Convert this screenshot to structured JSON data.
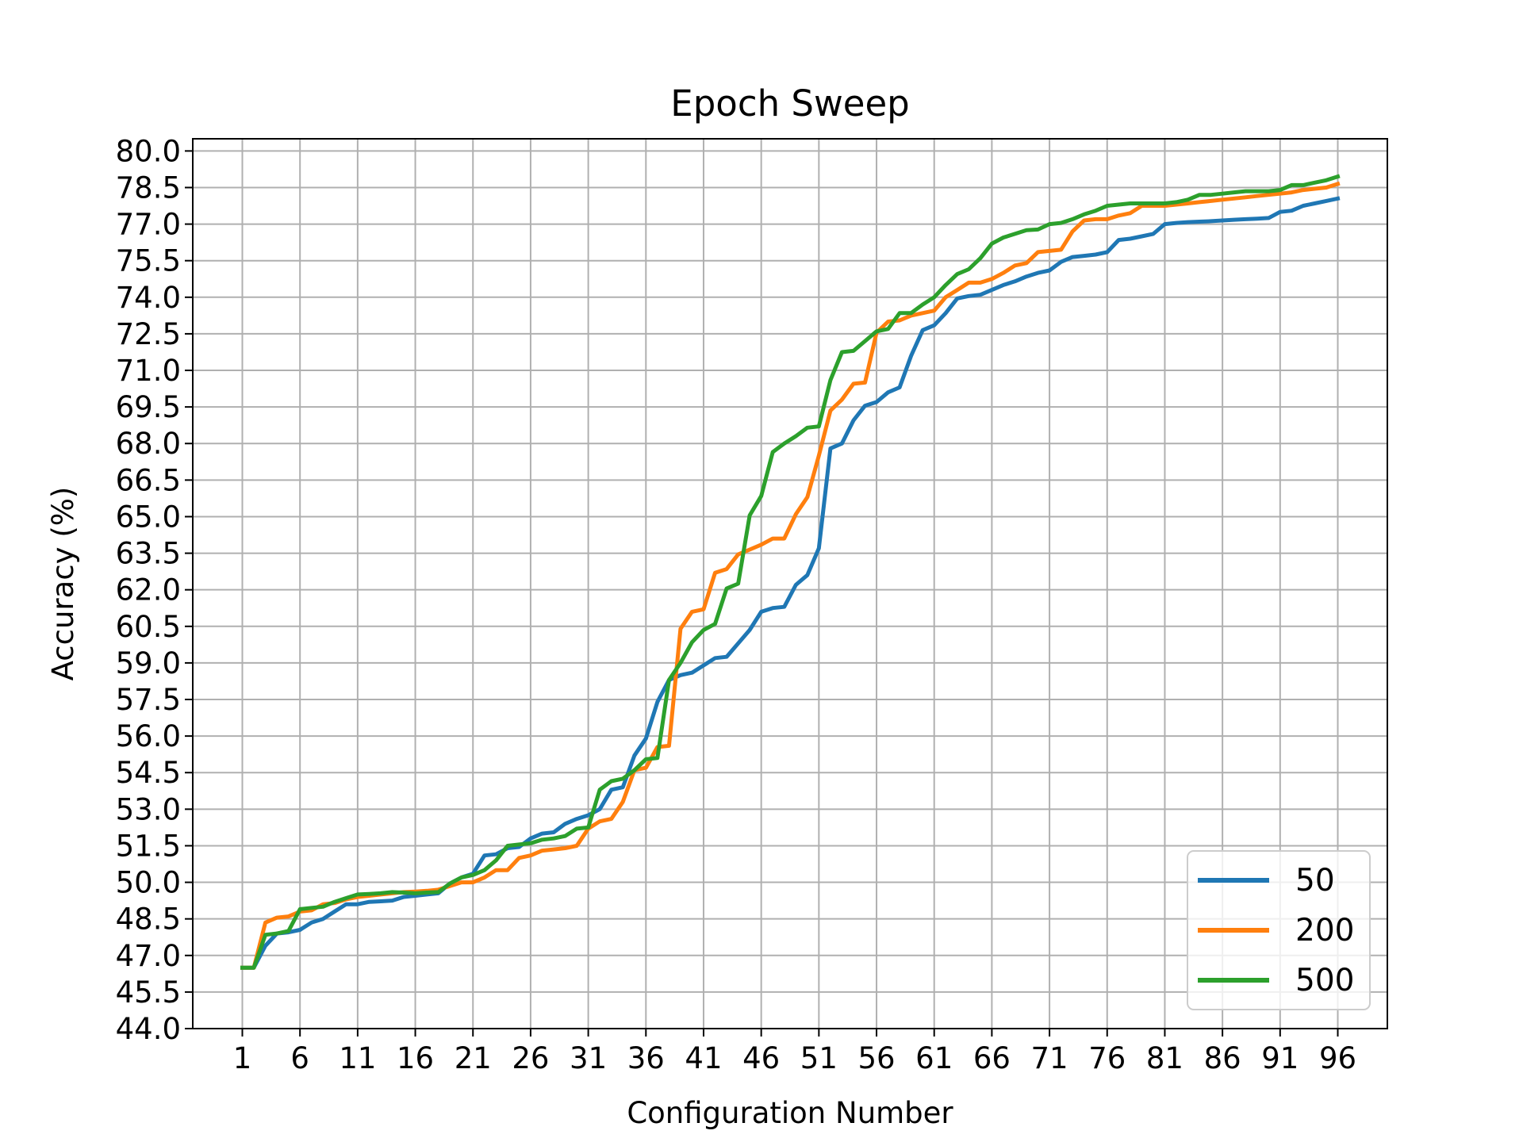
{
  "chart_data": {
    "type": "line",
    "title": "Epoch Sweep",
    "xlabel": "Configuration Number",
    "ylabel": "Accuracy (%)",
    "xlim": [
      -3.3,
      100.3
    ],
    "ylim": [
      44.0,
      80.5
    ],
    "xticks": [
      1,
      6,
      11,
      16,
      21,
      26,
      31,
      36,
      41,
      46,
      51,
      56,
      61,
      66,
      71,
      76,
      81,
      86,
      91,
      96
    ],
    "yticks": [
      "44.0",
      "45.5",
      "47.0",
      "48.5",
      "50.0",
      "51.5",
      "53.0",
      "54.5",
      "56.0",
      "57.5",
      "59.0",
      "60.5",
      "62.0",
      "63.5",
      "65.0",
      "66.5",
      "68.0",
      "69.5",
      "71.0",
      "72.5",
      "74.0",
      "75.5",
      "77.0",
      "78.5",
      "80.0"
    ],
    "grid": true,
    "legend_position": "lower-right",
    "colors": {
      "50": "#1f77b4",
      "200": "#ff7f0e",
      "500": "#2ca02c"
    },
    "x": [
      1,
      2,
      3,
      4,
      5,
      6,
      7,
      8,
      9,
      10,
      11,
      12,
      13,
      14,
      15,
      16,
      17,
      18,
      19,
      20,
      21,
      22,
      23,
      24,
      25,
      26,
      27,
      28,
      29,
      30,
      31,
      32,
      33,
      34,
      35,
      36,
      37,
      38,
      39,
      40,
      41,
      42,
      43,
      44,
      45,
      46,
      47,
      48,
      49,
      50,
      51,
      52,
      53,
      54,
      55,
      56,
      57,
      58,
      59,
      60,
      61,
      62,
      63,
      64,
      65,
      66,
      67,
      68,
      69,
      70,
      71,
      72,
      73,
      74,
      75,
      76,
      77,
      78,
      79,
      80,
      81,
      82,
      83,
      84,
      85,
      86,
      87,
      88,
      89,
      90,
      91,
      92,
      93,
      94,
      95,
      96
    ],
    "series": [
      {
        "name": "50",
        "color": "#1f77b4",
        "values": [
          46.5,
          46.5,
          47.4,
          47.9,
          47.95,
          48.05,
          48.35,
          48.5,
          48.8,
          49.1,
          49.1,
          49.2,
          49.22,
          49.25,
          49.4,
          49.45,
          49.5,
          49.55,
          49.95,
          50.2,
          50.35,
          51.1,
          51.15,
          51.4,
          51.45,
          51.8,
          52.0,
          52.05,
          52.4,
          52.6,
          52.75,
          53.0,
          53.8,
          53.9,
          55.2,
          55.9,
          57.4,
          58.3,
          58.5,
          58.6,
          58.9,
          59.2,
          59.25,
          59.8,
          60.35,
          61.1,
          61.25,
          61.3,
          62.2,
          62.6,
          63.7,
          67.8,
          68.0,
          68.95,
          69.55,
          69.7,
          70.1,
          70.3,
          71.6,
          72.65,
          72.85,
          73.35,
          73.95,
          74.05,
          74.1,
          74.3,
          74.5,
          74.65,
          74.85,
          75.0,
          75.1,
          75.45,
          75.65,
          75.7,
          75.75,
          75.85,
          76.35,
          76.4,
          76.5,
          76.6,
          77.0,
          77.05,
          77.08,
          77.1,
          77.12,
          77.15,
          77.18,
          77.2,
          77.22,
          77.25,
          77.5,
          77.55,
          77.75,
          77.85,
          77.95,
          78.05
        ]
      },
      {
        "name": "200",
        "color": "#ff7f0e",
        "values": [
          46.5,
          46.5,
          48.35,
          48.55,
          48.6,
          48.8,
          48.85,
          49.1,
          49.15,
          49.3,
          49.4,
          49.45,
          49.5,
          49.55,
          49.6,
          49.62,
          49.65,
          49.7,
          49.85,
          50.0,
          50.0,
          50.2,
          50.5,
          50.5,
          51.0,
          51.1,
          51.3,
          51.35,
          51.4,
          51.5,
          52.2,
          52.5,
          52.6,
          53.3,
          54.6,
          54.7,
          55.55,
          55.6,
          60.4,
          61.1,
          61.2,
          62.7,
          62.85,
          63.45,
          63.65,
          63.85,
          64.1,
          64.1,
          65.1,
          65.8,
          67.5,
          69.35,
          69.8,
          70.45,
          70.5,
          72.55,
          73.0,
          73.05,
          73.25,
          73.35,
          73.45,
          74.0,
          74.3,
          74.6,
          74.6,
          74.75,
          75.0,
          75.3,
          75.4,
          75.85,
          75.9,
          75.95,
          76.7,
          77.15,
          77.2,
          77.2,
          77.35,
          77.45,
          77.75,
          77.75,
          77.75,
          77.8,
          77.85,
          77.9,
          77.95,
          78.0,
          78.05,
          78.1,
          78.15,
          78.2,
          78.25,
          78.3,
          78.4,
          78.45,
          78.5,
          78.65
        ]
      },
      {
        "name": "500",
        "color": "#2ca02c",
        "values": [
          46.5,
          46.5,
          47.85,
          47.9,
          48.0,
          48.9,
          48.95,
          49.0,
          49.2,
          49.35,
          49.5,
          49.52,
          49.55,
          49.6,
          49.58,
          49.55,
          49.58,
          49.6,
          49.95,
          50.2,
          50.3,
          50.5,
          50.9,
          51.5,
          51.55,
          51.6,
          51.75,
          51.8,
          51.9,
          52.2,
          52.25,
          53.8,
          54.15,
          54.25,
          54.6,
          55.05,
          55.1,
          58.3,
          59.0,
          59.85,
          60.35,
          60.6,
          62.05,
          62.25,
          65.05,
          65.85,
          67.65,
          68.0,
          68.3,
          68.65,
          68.7,
          70.6,
          71.75,
          71.8,
          72.2,
          72.6,
          72.7,
          73.35,
          73.35,
          73.7,
          74.0,
          74.5,
          74.95,
          75.15,
          75.6,
          76.2,
          76.45,
          76.6,
          76.75,
          76.78,
          77.0,
          77.05,
          77.2,
          77.4,
          77.55,
          77.75,
          77.8,
          77.85,
          77.85,
          77.85,
          77.85,
          77.9,
          78.0,
          78.2,
          78.2,
          78.25,
          78.3,
          78.35,
          78.35,
          78.35,
          78.4,
          78.6,
          78.6,
          78.7,
          78.8,
          78.95
        ]
      }
    ]
  }
}
